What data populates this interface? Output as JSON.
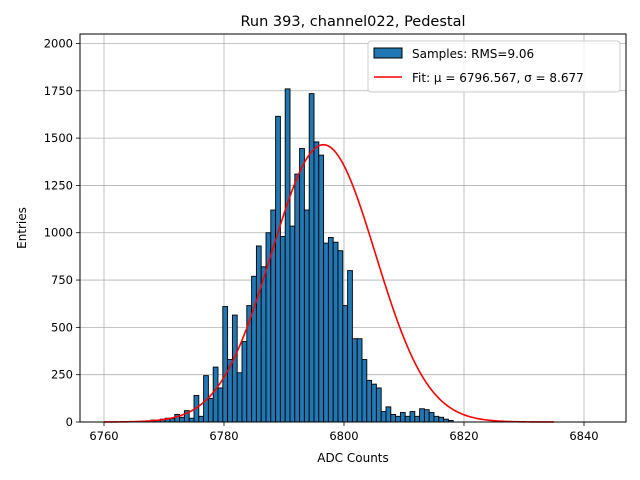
{
  "chart_data": {
    "type": "bar",
    "title": "Run 393, channel022, Pedestal",
    "xlabel": "ADC Counts",
    "ylabel": "Entries",
    "xlim": [
      6756,
      6847
    ],
    "ylim": [
      0,
      2050
    ],
    "xticks": [
      6760,
      6780,
      6800,
      6820,
      6840
    ],
    "yticks": [
      0,
      250,
      500,
      750,
      1000,
      1250,
      1500,
      1750,
      2000
    ],
    "grid": true,
    "legend_position": "top-right",
    "bar_color": "#1f77b4",
    "bar_edge_color": "#000000",
    "fit_color": "#ff0000",
    "histogram": {
      "name": "Samples: RMS=9.06",
      "bin_width": 0.8,
      "bins": [
        [
          6767.0,
          5
        ],
        [
          6767.8,
          10
        ],
        [
          6768.6,
          8
        ],
        [
          6769.4,
          15
        ],
        [
          6770.2,
          20
        ],
        [
          6771.0,
          18
        ],
        [
          6771.8,
          40
        ],
        [
          6772.6,
          25
        ],
        [
          6773.4,
          60
        ],
        [
          6774.2,
          20
        ],
        [
          6775.0,
          140
        ],
        [
          6775.8,
          30
        ],
        [
          6776.6,
          245
        ],
        [
          6777.4,
          125
        ],
        [
          6778.2,
          290
        ],
        [
          6779.0,
          180
        ],
        [
          6779.8,
          610
        ],
        [
          6780.6,
          330
        ],
        [
          6781.4,
          565
        ],
        [
          6782.2,
          260
        ],
        [
          6783.0,
          425
        ],
        [
          6783.8,
          615
        ],
        [
          6784.6,
          770
        ],
        [
          6785.4,
          930
        ],
        [
          6786.2,
          820
        ],
        [
          6787.0,
          1000
        ],
        [
          6787.8,
          1120
        ],
        [
          6788.6,
          1615
        ],
        [
          6789.4,
          980
        ],
        [
          6790.2,
          1760
        ],
        [
          6791.0,
          1035
        ],
        [
          6791.8,
          1310
        ],
        [
          6792.6,
          1445
        ],
        [
          6793.4,
          1120
        ],
        [
          6794.2,
          1735
        ],
        [
          6795.0,
          1480
        ],
        [
          6795.8,
          1410
        ],
        [
          6796.6,
          945
        ],
        [
          6797.4,
          975
        ],
        [
          6798.2,
          950
        ],
        [
          6799.0,
          905
        ],
        [
          6799.8,
          615
        ],
        [
          6800.6,
          800
        ],
        [
          6801.4,
          440
        ],
        [
          6802.2,
          440
        ],
        [
          6803.0,
          330
        ],
        [
          6803.8,
          220
        ],
        [
          6804.6,
          200
        ],
        [
          6805.4,
          180
        ],
        [
          6806.2,
          55
        ],
        [
          6807.0,
          80
        ],
        [
          6807.8,
          40
        ],
        [
          6808.6,
          30
        ],
        [
          6809.4,
          50
        ],
        [
          6810.2,
          30
        ],
        [
          6811.0,
          55
        ],
        [
          6811.8,
          30
        ],
        [
          6812.6,
          70
        ],
        [
          6813.4,
          65
        ],
        [
          6814.2,
          50
        ],
        [
          6815.0,
          30
        ],
        [
          6815.8,
          25
        ],
        [
          6816.6,
          15
        ],
        [
          6817.4,
          8
        ]
      ]
    },
    "fit": {
      "name": "Fit: μ = 6796.567, σ = 8.677",
      "mu": 6796.567,
      "sigma": 8.677,
      "amplitude": 1465,
      "x_range": [
        6760,
        6835
      ]
    }
  }
}
